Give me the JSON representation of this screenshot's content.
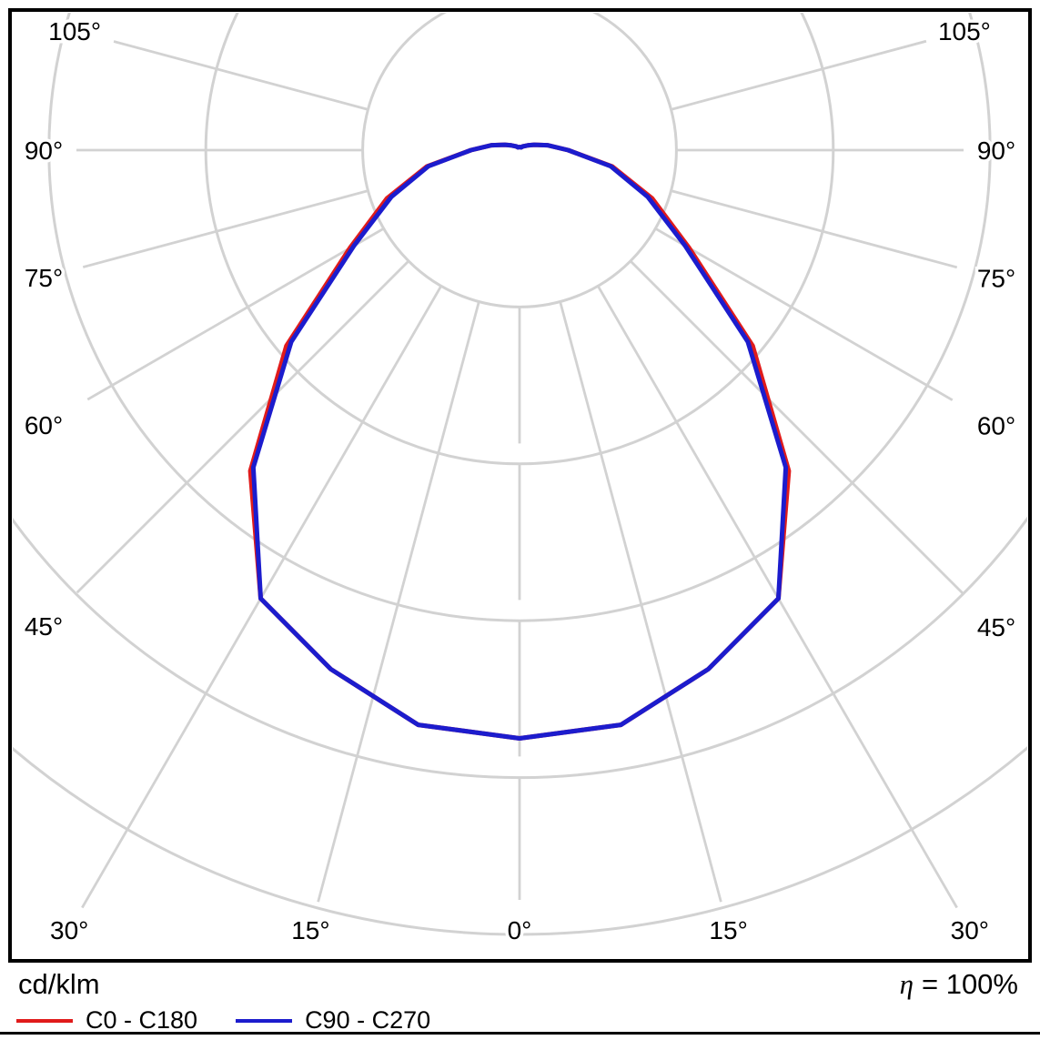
{
  "footer": {
    "unit_label": "cd/klm",
    "eta_symbol": "η",
    "eta_value": "= 100%"
  },
  "legend": [
    {
      "label": "C0 - C180",
      "color": "#e01b1b"
    },
    {
      "label": "C90 - C270",
      "color": "#1c1ccd"
    }
  ],
  "chart_data": {
    "type": "line",
    "subtype": "polar-luminous-intensity-distribution",
    "units": "cd/klm",
    "gamma_angles": [
      0,
      10,
      20,
      30,
      40,
      50,
      60,
      70,
      80,
      90,
      100,
      110,
      120,
      130,
      140,
      150,
      160,
      170,
      180
    ],
    "series": [
      {
        "name": "C0 - C180",
        "color": "#e01b1b",
        "values": [
          375,
          372,
          352,
          330,
          267,
          194,
          125,
          90,
          60,
          31,
          18,
          10,
          6,
          4,
          3,
          2,
          2,
          2,
          2
        ]
      },
      {
        "name": "C90 - C270",
        "color": "#1c1ccd",
        "values": [
          375,
          372,
          352,
          330,
          264,
          190,
          122,
          87,
          59,
          31,
          18,
          10,
          6,
          4,
          3,
          2,
          2,
          2,
          2
        ]
      }
    ],
    "radial_axis": {
      "rings": 5,
      "ring_step": 100,
      "max": 500,
      "unit": "cd/klm"
    },
    "angle_label_values": [
      0,
      15,
      30,
      45,
      60,
      75,
      90,
      105
    ],
    "angle_labels": [
      "0°",
      "15°",
      "30°",
      "45°",
      "60°",
      "75°",
      "90°",
      "105°"
    ],
    "grid_color": "#d2d2d2",
    "curve_mirrored": true,
    "legend_position": "bottom",
    "efficiency": "100%"
  }
}
